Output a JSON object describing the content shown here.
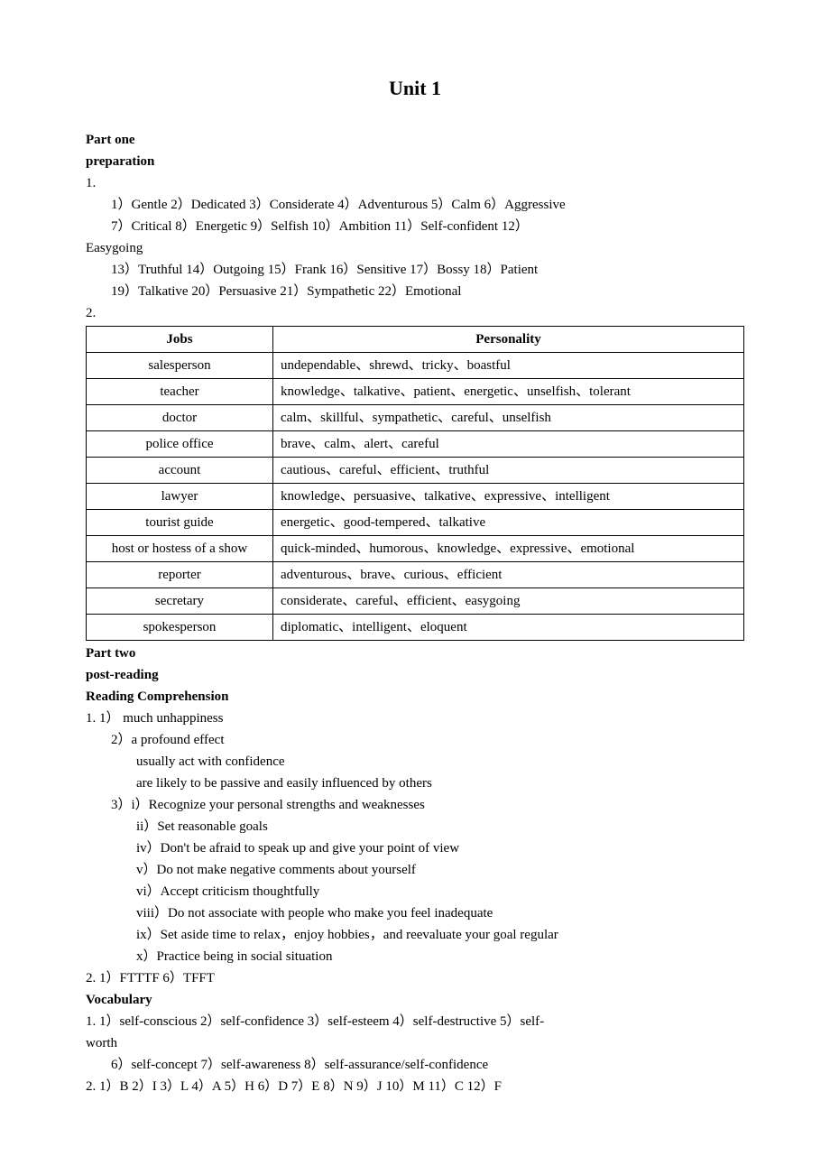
{
  "title": "Unit 1",
  "partOne": {
    "header1": "Part one",
    "header2": "preparation",
    "q1Num": "1.",
    "line1": "1）Gentle   2）Dedicated   3）Considerate   4）Adventurous   5）Calm   6）Aggressive",
    "line2": "7）Critical   8）Energetic   9）Selfish   10）Ambition   11）Self-confident   12）",
    "line3": "Easygoing",
    "line4": "13）Truthful   14）Outgoing   15）Frank   16）Sensitive   17）Bossy   18）Patient",
    "line5": "19）Talkative   20）Persuasive   21）Sympathetic   22）Emotional",
    "q2Num": "2.",
    "table": {
      "headers": [
        "Jobs",
        "Personality"
      ],
      "rows": [
        [
          "salesperson",
          "undependable、shrewd、tricky、boastful"
        ],
        [
          "teacher",
          "knowledge、talkative、patient、energetic、unselfish、tolerant"
        ],
        [
          "doctor",
          "calm、skillful、sympathetic、careful、unselfish"
        ],
        [
          "police office",
          "brave、calm、alert、careful"
        ],
        [
          "account",
          "cautious、careful、efficient、truthful"
        ],
        [
          "lawyer",
          "knowledge、persuasive、talkative、expressive、intelligent"
        ],
        [
          "tourist guide",
          "energetic、good-tempered、talkative"
        ],
        [
          "host or hostess of a show",
          "quick-minded、humorous、knowledge、expressive、emotional"
        ],
        [
          "reporter",
          "adventurous、brave、curious、efficient"
        ],
        [
          "secretary",
          "considerate、careful、efficient、easygoing"
        ],
        [
          "spokesperson",
          "diplomatic、intelligent、eloquent"
        ]
      ]
    }
  },
  "partTwo": {
    "header1": "Part two",
    "header2": "post-reading",
    "header3": "Reading Comprehension",
    "q1Line1": "1.   1）  much unhappiness",
    "q1Line2": "2）a profound effect",
    "q1Line3": "usually act with confidence",
    "q1Line4": "are likely to be passive and easily influenced by others",
    "q1Line5": "3）i）Recognize your personal strengths and weaknesses",
    "q1Line6": "ii）Set reasonable goals",
    "q1Line7": "iv）Don't be afraid to speak up and give your point of view",
    "q1Line8": "v）Do not make negative comments about yourself",
    "q1Line9": "vi）Accept criticism thoughtfully",
    "q1Line10": "viii）Do not associate with people who make you feel inadequate",
    "q1Line11": "ix）Set aside time to relax，enjoy hobbies，and reevaluate your goal regular",
    "q1Line12": "x）Practice being in social situation",
    "q2": "2.   1）FTTTF   6）TFFT",
    "vocabHeader": "Vocabulary",
    "v1Line1": "1.   1）self-conscious   2）self-confidence   3）self-esteem   4）self-destructive   5）self-",
    "v1Line2": "worth",
    "v1Line3": "6）self-concept   7）self-awareness   8）self-assurance/self-confidence",
    "v2": "2.   1）B   2）I   3）L   4）A   5）H   6）D   7）E   8）N   9）J   10）M 11）C   12）F"
  }
}
